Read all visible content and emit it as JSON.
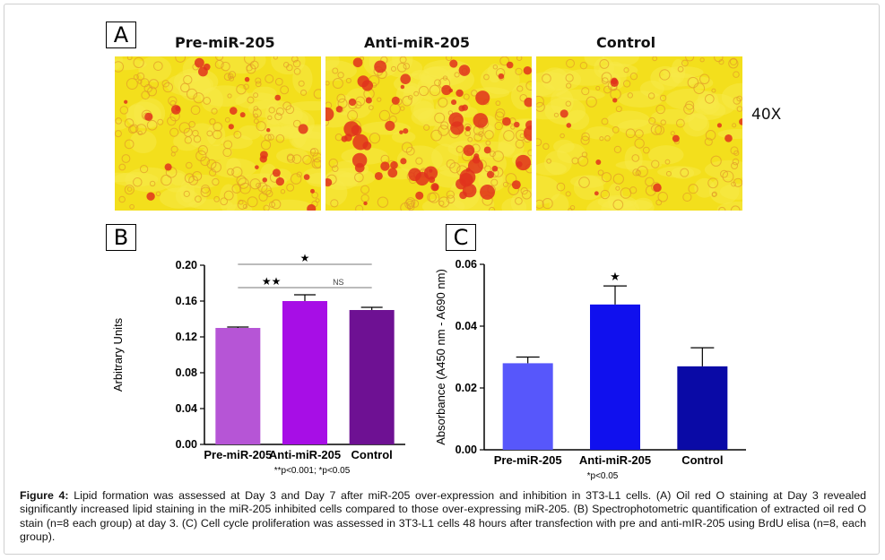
{
  "panelA": {
    "letter": "A",
    "magnification": "40X",
    "columns": [
      "Pre-miR-205",
      "Anti-miR-205",
      "Control"
    ]
  },
  "caption": {
    "label": "Figure 4:",
    "text": "Lipid formation was assessed at Day 3 and Day 7 after miR-205 over-expression and inhibition in 3T3-L1 cells. (A) Oil red O staining at Day 3 revealed significantly increased lipid staining in the miR-205 inhibited cells compared to those over-expressing miR-205. (B) Spectrophotometric quantification of extracted oil red O stain (n=8 each group) at day 3. (C) Cell cycle proliferation was assessed in 3T3-L1 cells 48 hours after transfection with pre and anti-mIR-205 using BrdU elisa (n=8, each group)."
  },
  "chart_data": [
    {
      "panel": "B",
      "type": "bar",
      "ylabel": "Arbitrary Units",
      "ylim": [
        0,
        0.2
      ],
      "yticks": [
        "0.00",
        "0.04",
        "0.08",
        "0.12",
        "0.16",
        "0.20"
      ],
      "categories": [
        "Pre-miR-205",
        "Anti-miR-205",
        "Control"
      ],
      "values": [
        0.13,
        0.16,
        0.15
      ],
      "errors": [
        0.001,
        0.007,
        0.003
      ],
      "colors": [
        "#b655d6",
        "#a70ee6",
        "#6e1193"
      ],
      "brackets": [
        {
          "from": 0,
          "to": 2,
          "label": "★"
        },
        {
          "from": 0,
          "to": 1,
          "label": "★★"
        },
        {
          "from": 1,
          "to": 2,
          "label": "NS"
        }
      ],
      "footnote": "**p<0.001; *p<0.05"
    },
    {
      "panel": "C",
      "type": "bar",
      "ylabel": "Absorbance (A450 nm - A690 nm)",
      "ylim": [
        0,
        0.06
      ],
      "yticks": [
        "0.00",
        "0.02",
        "0.04",
        "0.06"
      ],
      "categories": [
        "Pre-miR-205",
        "Anti-miR-205",
        "Control"
      ],
      "values": [
        0.028,
        0.047,
        0.027
      ],
      "errors": [
        0.002,
        0.006,
        0.006
      ],
      "colors": [
        "#5757fb",
        "#1010ee",
        "#0a0aa6"
      ],
      "star_over": 1,
      "star": "★",
      "footnote": "*p<0.05"
    }
  ]
}
